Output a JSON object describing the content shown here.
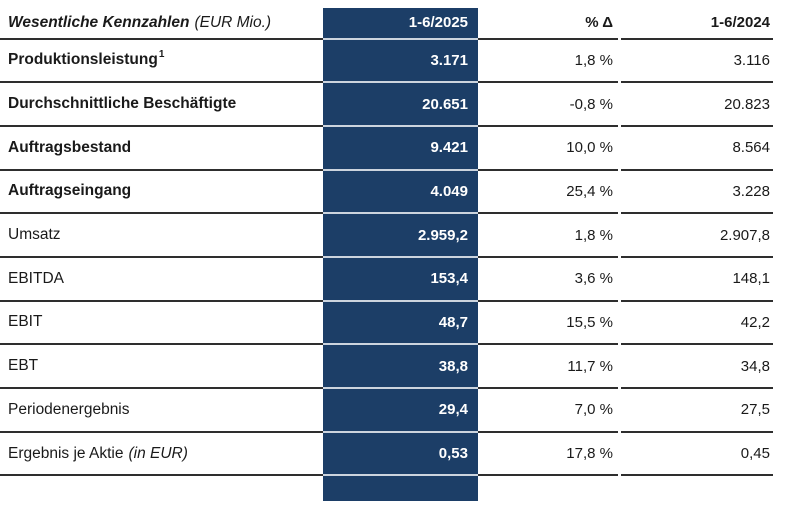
{
  "table": {
    "title": "Wesentliche Kennzahlen",
    "title_unit": "(EUR Mio.)",
    "columns": {
      "current": "1-6/2025",
      "delta": "% Δ",
      "prior": "1-6/2024"
    },
    "rows": [
      {
        "label": "Produktionsleistung",
        "sup": "1",
        "v2025": "3.171",
        "delta": "1,8 %",
        "v2024": "3.116"
      },
      {
        "label": "Durchschnittliche Beschäftigte",
        "v2025": "20.651",
        "delta": "-0,8 %",
        "v2024": "20.823"
      },
      {
        "label": "Auftragsbestand",
        "v2025": "9.421",
        "delta": "10,0 %",
        "v2024": "8.564"
      },
      {
        "label": "Auftragseingang",
        "v2025": "4.049",
        "delta": "25,4 %",
        "v2024": "3.228"
      },
      {
        "label": "Umsatz",
        "v2025": "2.959,2",
        "delta": "1,8 %",
        "v2024": "2.907,8"
      },
      {
        "label": "EBITDA",
        "v2025": "153,4",
        "delta": "3,6 %",
        "v2024": "148,1"
      },
      {
        "label": "EBIT",
        "v2025": "48,7",
        "delta": "15,5 %",
        "v2024": "42,2"
      },
      {
        "label": "EBT",
        "v2025": "38,8",
        "delta": "11,7 %",
        "v2024": "34,8"
      },
      {
        "label": "Periodenergebnis",
        "v2025": "29,4",
        "delta": "7,0 %",
        "v2024": "27,5"
      },
      {
        "label": "Ergebnis je Aktie",
        "label_suffix": "(in EUR)",
        "v2025": "0,53",
        "delta": "17,8 %",
        "v2024": "0,45"
      }
    ],
    "colors": {
      "accent_navy": "#1C3E67",
      "row_line": "#2E2E2E",
      "cell_gap": "#CCD4DE",
      "text": "#1A1A1A",
      "highlight_text": "#FFFFFF"
    }
  }
}
